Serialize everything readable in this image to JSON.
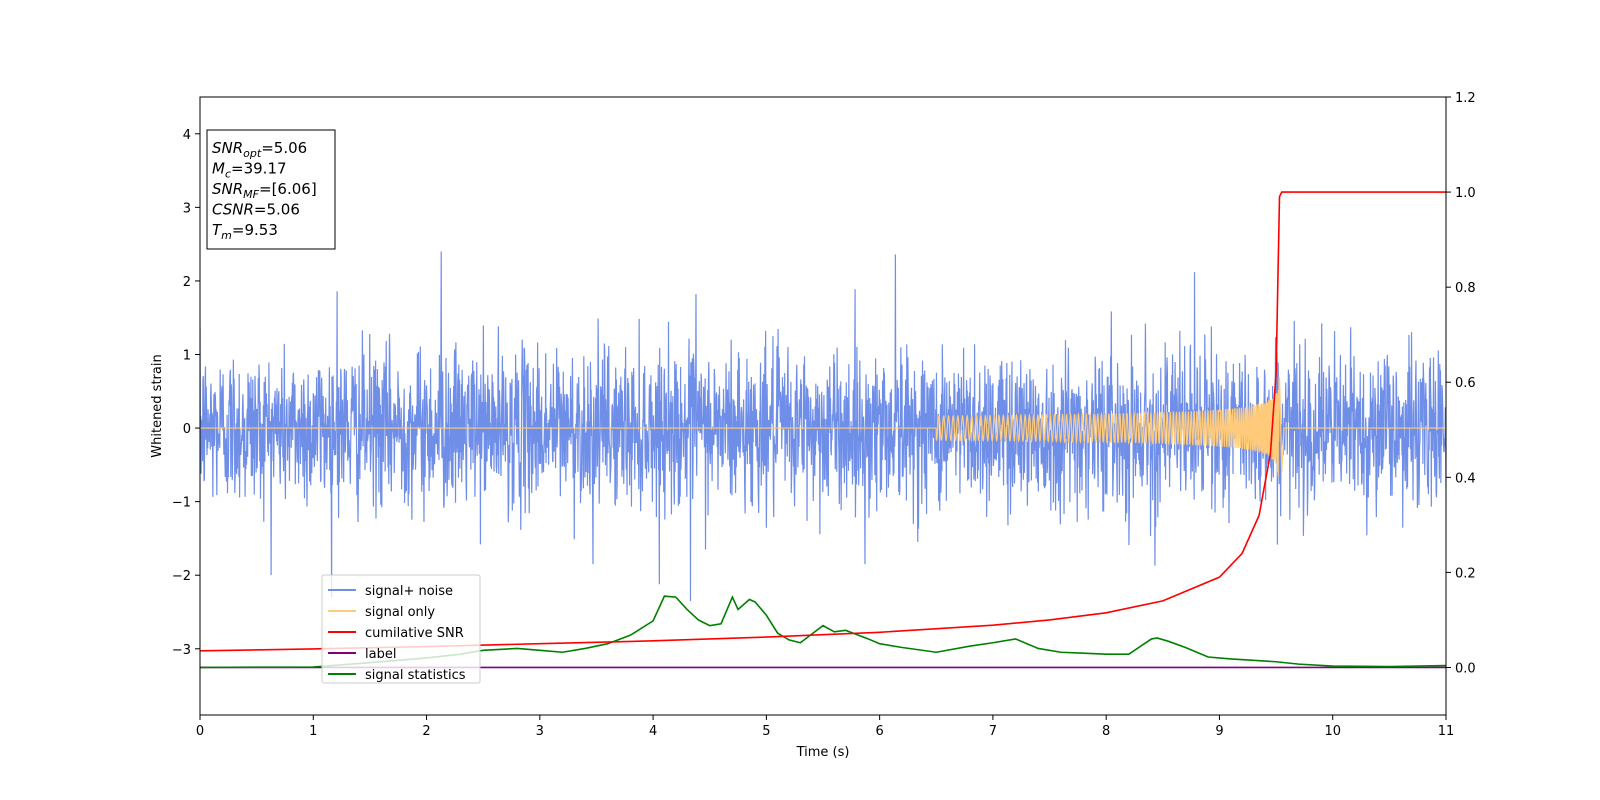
{
  "chart_data": {
    "type": "line",
    "xlabel": "Time (s)",
    "ylabel": "Whitened strain",
    "xlim": [
      0,
      11
    ],
    "ylim": [
      -3.9,
      4.5
    ],
    "ylim_right": [
      -0.1,
      1.2
    ],
    "x_ticks": [
      "0",
      "1",
      "2",
      "3",
      "4",
      "5",
      "6",
      "7",
      "8",
      "9",
      "10",
      "11"
    ],
    "y_ticks": [
      "−3",
      "−2",
      "−1",
      "0",
      "1",
      "2",
      "3",
      "4"
    ],
    "y_ticks_right": [
      "0.0",
      "0.2",
      "0.4",
      "0.6",
      "0.8",
      "1.0",
      "1.2"
    ],
    "grid": false,
    "legend_position": "lower-left",
    "annotation": {
      "lines": [
        {
          "base": "SNR",
          "sub": "opt",
          "value": "=5.06"
        },
        {
          "base": "M",
          "sub": "c",
          "value": "=39.17"
        },
        {
          "base": "SNR",
          "sub": "MF",
          "value": "=[6.06]"
        },
        {
          "base": "CSNR",
          "sub": "",
          "value": "=5.06"
        },
        {
          "base": "T",
          "sub": "m",
          "value": "=9.53"
        }
      ]
    },
    "series": [
      {
        "name": "signal+ noise",
        "color": "#6f8ee8",
        "axis": "left",
        "description_noise_amplitude": 0.55,
        "spikes_up": [
          [
            2.13,
            2.4
          ],
          [
            6.14,
            2.36
          ],
          [
            8.78,
            2.12
          ],
          [
            1.21,
            1.86
          ],
          [
            4.38,
            1.82
          ]
        ],
        "spikes_down": [
          [
            4.33,
            -2.35
          ],
          [
            3.47,
            -1.85
          ],
          [
            5.87,
            -1.85
          ],
          [
            8.43,
            -1.87
          ]
        ]
      },
      {
        "name": "signal only",
        "color": "#ffcb7a",
        "axis": "left",
        "chirp": {
          "start": 6.5,
          "merger": 9.53,
          "peak": 0.9
        }
      },
      {
        "name": "cumilative SNR",
        "color": "#ff0000",
        "axis": "right",
        "x": [
          0,
          1,
          2,
          3,
          4,
          5,
          6,
          7,
          7.5,
          8,
          8.5,
          9.0,
          9.2,
          9.35,
          9.45,
          9.5,
          9.53,
          9.55,
          11
        ],
        "y": [
          0.035,
          0.039,
          0.044,
          0.05,
          0.056,
          0.064,
          0.074,
          0.089,
          0.1,
          0.115,
          0.14,
          0.19,
          0.24,
          0.32,
          0.45,
          0.62,
          0.99,
          1.0,
          1.0
        ]
      },
      {
        "name": "label",
        "color": "#800080",
        "axis": "right",
        "x": [
          0,
          11
        ],
        "y": [
          0.0,
          0.0
        ]
      },
      {
        "name": "signal statistics",
        "color": "#008000",
        "axis": "right",
        "x": [
          0,
          1,
          1.5,
          2,
          2.3,
          2.5,
          2.8,
          3.0,
          3.2,
          3.4,
          3.6,
          3.8,
          4.0,
          4.1,
          4.2,
          4.3,
          4.4,
          4.5,
          4.6,
          4.7,
          4.75,
          4.85,
          4.9,
          5.0,
          5.1,
          5.2,
          5.3,
          5.5,
          5.6,
          5.7,
          5.9,
          6.0,
          6.2,
          6.5,
          6.8,
          7.0,
          7.2,
          7.4,
          7.6,
          7.8,
          8.0,
          8.2,
          8.4,
          8.45,
          8.55,
          8.7,
          8.9,
          9.1,
          9.3,
          9.5,
          9.7,
          10.0,
          10.5,
          11
        ],
        "y": [
          0.0,
          0.001,
          0.01,
          0.02,
          0.028,
          0.036,
          0.04,
          0.036,
          0.032,
          0.04,
          0.05,
          0.068,
          0.098,
          0.15,
          0.148,
          0.122,
          0.1,
          0.088,
          0.092,
          0.148,
          0.122,
          0.143,
          0.138,
          0.11,
          0.072,
          0.058,
          0.052,
          0.088,
          0.075,
          0.078,
          0.06,
          0.05,
          0.042,
          0.032,
          0.045,
          0.052,
          0.06,
          0.04,
          0.032,
          0.03,
          0.028,
          0.028,
          0.06,
          0.062,
          0.055,
          0.042,
          0.022,
          0.018,
          0.015,
          0.012,
          0.007,
          0.003,
          0.002,
          0.004
        ]
      }
    ]
  }
}
